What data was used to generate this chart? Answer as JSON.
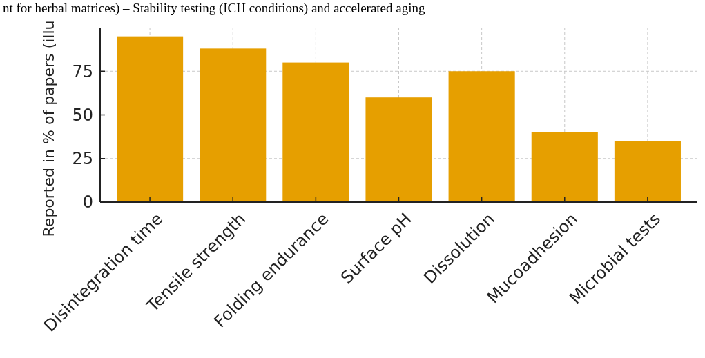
{
  "chart_data": {
    "type": "bar",
    "ylabel": "Reported in % of papers (illu",
    "annotations": [
      "nt for herbal matrices) – Stability testing (ICH conditions) and accelerated aging"
    ],
    "categories": [
      "Disintegration time",
      "Tensile strength",
      "Folding endurance",
      "Surface pH",
      "Dissolution",
      "Mucoadhesion",
      "Microbial tests"
    ],
    "values": [
      95,
      88,
      80,
      60,
      75,
      40,
      35
    ],
    "color": "#e69f00",
    "ylim": [
      0,
      100
    ],
    "yticks": [
      0,
      25,
      50,
      75
    ],
    "grid": true
  }
}
